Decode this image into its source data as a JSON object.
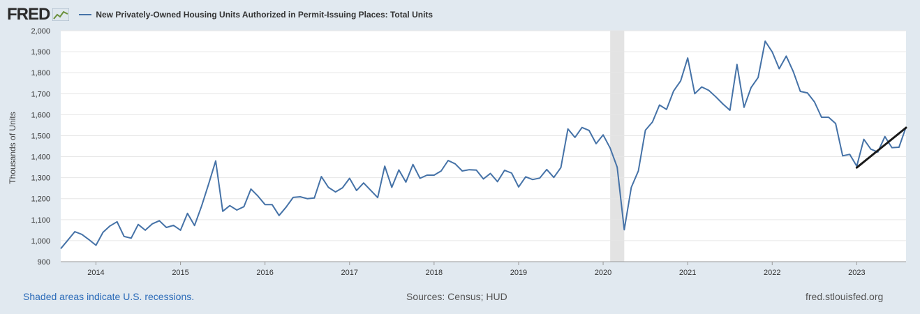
{
  "header": {
    "logo": "FRED",
    "title": "New Privately-Owned Housing Units Authorized in Permit-Issuing Places: Total Units"
  },
  "footer": {
    "recession_note": "Shaded areas indicate U.S. recessions.",
    "sources": "Sources: Census; HUD",
    "site": "fred.stlouisfed.org"
  },
  "colors": {
    "series": "#4572a7",
    "trend": "#1a1a1a",
    "recession": "#e3e3e3",
    "plot_bg": "#ffffff",
    "page_bg": "#e1e9f0"
  },
  "chart_data": {
    "type": "line",
    "title": "New Privately-Owned Housing Units Authorized in Permit-Issuing Places: Total Units",
    "ylabel": "Thousands of Units",
    "xlabel": "",
    "ylim": [
      900,
      2000
    ],
    "yticks": [
      "900",
      "1,000",
      "1,100",
      "1,200",
      "1,300",
      "1,400",
      "1,500",
      "1,600",
      "1,700",
      "1,800",
      "1,900",
      "2,000"
    ],
    "xticks": [
      "2014",
      "2015",
      "2016",
      "2017",
      "2018",
      "2019",
      "2020",
      "2021",
      "2022",
      "2023"
    ],
    "xlim": [
      "2013-08",
      "2023-08"
    ],
    "grid": true,
    "recession": {
      "start": "2020-02",
      "end": "2020-04"
    },
    "series": [
      {
        "x": [
          "2013-08",
          "2013-09",
          "2013-10",
          "2013-11",
          "2013-12",
          "2014-01",
          "2014-02",
          "2014-03",
          "2014-04",
          "2014-05",
          "2014-06",
          "2014-07",
          "2014-08",
          "2014-09",
          "2014-10",
          "2014-11",
          "2014-12",
          "2015-01",
          "2015-02",
          "2015-03",
          "2015-04",
          "2015-05",
          "2015-06",
          "2015-07",
          "2015-08",
          "2015-09",
          "2015-10",
          "2015-11",
          "2015-12",
          "2016-01",
          "2016-02",
          "2016-03",
          "2016-04",
          "2016-05",
          "2016-06",
          "2016-07",
          "2016-08",
          "2016-09",
          "2016-10",
          "2016-11",
          "2016-12",
          "2017-01",
          "2017-02",
          "2017-03",
          "2017-04",
          "2017-05",
          "2017-06",
          "2017-07",
          "2017-08",
          "2017-09",
          "2017-10",
          "2017-11",
          "2017-12",
          "2018-01",
          "2018-02",
          "2018-03",
          "2018-04",
          "2018-05",
          "2018-06",
          "2018-07",
          "2018-08",
          "2018-09",
          "2018-10",
          "2018-11",
          "2018-12",
          "2019-01",
          "2019-02",
          "2019-03",
          "2019-04",
          "2019-05",
          "2019-06",
          "2019-07",
          "2019-08",
          "2019-09",
          "2019-10",
          "2019-11",
          "2019-12",
          "2020-01",
          "2020-02",
          "2020-03",
          "2020-04",
          "2020-05",
          "2020-06",
          "2020-07",
          "2020-08",
          "2020-09",
          "2020-10",
          "2020-11",
          "2020-12",
          "2021-01",
          "2021-02",
          "2021-03",
          "2021-04",
          "2021-05",
          "2021-06",
          "2021-07",
          "2021-08",
          "2021-09",
          "2021-10",
          "2021-11",
          "2021-12",
          "2022-01",
          "2022-02",
          "2022-03",
          "2022-04",
          "2022-05",
          "2022-06",
          "2022-07",
          "2022-08",
          "2022-09",
          "2022-10",
          "2022-11",
          "2022-12",
          "2023-01",
          "2023-02",
          "2023-03",
          "2023-04",
          "2023-05",
          "2023-06",
          "2023-07",
          "2023-08"
        ],
        "values": [
          962,
          1002,
          1043,
          1030,
          1005,
          978,
          1040,
          1070,
          1090,
          1020,
          1012,
          1077,
          1050,
          1080,
          1095,
          1063,
          1073,
          1050,
          1130,
          1072,
          1165,
          1270,
          1380,
          1140,
          1167,
          1146,
          1162,
          1246,
          1212,
          1172,
          1172,
          1120,
          1160,
          1206,
          1209,
          1200,
          1203,
          1305,
          1254,
          1232,
          1252,
          1297,
          1239,
          1275,
          1240,
          1205,
          1355,
          1254,
          1337,
          1279,
          1363,
          1297,
          1312,
          1312,
          1332,
          1382,
          1366,
          1332,
          1338,
          1336,
          1294,
          1320,
          1281,
          1335,
          1322,
          1256,
          1304,
          1291,
          1298,
          1339,
          1301,
          1348,
          1532,
          1492,
          1539,
          1525,
          1462,
          1504,
          1441,
          1350,
          1052,
          1254,
          1332,
          1526,
          1565,
          1646,
          1625,
          1713,
          1761,
          1870,
          1700,
          1732,
          1716,
          1685,
          1651,
          1621,
          1839,
          1635,
          1729,
          1777,
          1950,
          1899,
          1819,
          1879,
          1805,
          1711,
          1704,
          1661,
          1588,
          1588,
          1558,
          1404,
          1411,
          1355,
          1483,
          1436,
          1422,
          1496,
          1443,
          1445,
          1541
        ]
      }
    ],
    "trend": {
      "x": [
        "2023-01",
        "2023-08"
      ],
      "values": [
        1348,
        1538
      ]
    }
  }
}
